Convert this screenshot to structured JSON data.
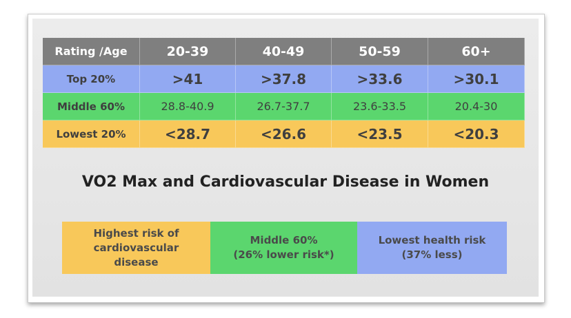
{
  "colors": {
    "header": "#7f7f7f",
    "top_row": "#92a9f2",
    "middle_row": "#5bd66e",
    "lowest_row": "#f8c85a",
    "label_text": "#3f3f3f"
  },
  "table": {
    "headers": [
      "Rating /Age",
      "20-39",
      "40-49",
      "50-59",
      "60+"
    ],
    "rows": [
      {
        "label": "Top 20%",
        "values": [
          ">41",
          ">37.8",
          ">33.6",
          ">30.1"
        ]
      },
      {
        "label": "Middle 60%",
        "values": [
          "28.8-40.9",
          "26.7-37.7",
          "23.6-33.5",
          "20.4-30"
        ]
      },
      {
        "label": "Lowest 20%",
        "values": [
          "<28.7",
          "<26.6",
          "<23.5",
          "<20.3"
        ]
      }
    ]
  },
  "title": "VO2 Max and Cardiovascular Disease in Women",
  "legend": [
    {
      "text": "Highest risk of\ncardiovascular\ndisease",
      "color": "#f8c85a"
    },
    {
      "text": "Middle 60%\n(26% lower risk*)",
      "color": "#5bd66e"
    },
    {
      "text": "Lowest health risk\n(37% less)",
      "color": "#92a9f2"
    }
  ]
}
